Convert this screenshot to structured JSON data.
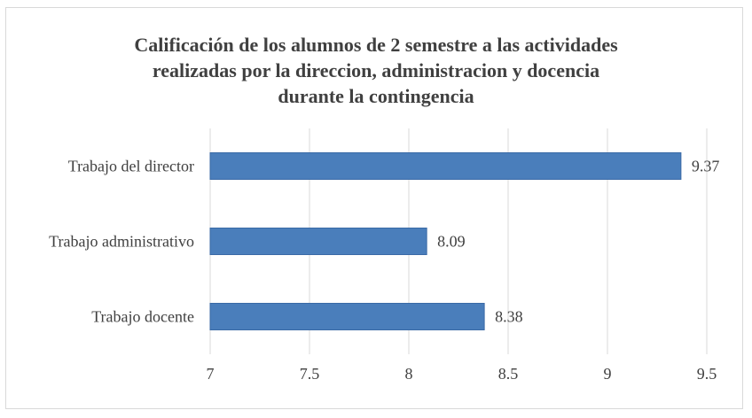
{
  "chart_data": {
    "type": "bar",
    "orientation": "horizontal",
    "title_lines": [
      "Calificación de los alumnos de 2 semestre a  las actividades",
      "realizadas por la direccion, administracion y docencia",
      "durante la contingencia"
    ],
    "categories": [
      "Trabajo del director",
      "Trabajo administrativo",
      "Trabajo docente"
    ],
    "values": [
      9.37,
      8.09,
      8.38
    ],
    "data_labels": [
      "9.37",
      "8.09",
      "8.38"
    ],
    "xlim": [
      7,
      9.5
    ],
    "xticks": [
      7,
      7.5,
      8,
      8.5,
      9,
      9.5
    ],
    "xtick_labels": [
      "7",
      "7.5",
      "8",
      "8.5",
      "9",
      "9.5"
    ],
    "grid": "vertical",
    "legend": "none",
    "colors": {
      "bar": "#4a7ebb",
      "bar_edge": "#3a6aa6",
      "grid": "#d9d9d9",
      "text": "#404040"
    }
  }
}
